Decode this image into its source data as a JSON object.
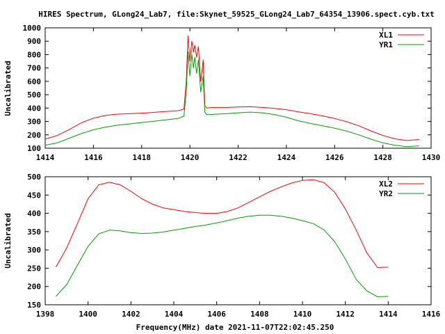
{
  "title": "HIRES Spectrum, GLong24_Lab7, file:Skynet_59525_GLong24_Lab7_64354_13906.spect.cyb.txt",
  "xlabel_bottom": "Frequency(MHz) date 2021-11-07T22:02:45.250",
  "colors": {
    "red": "#ff0000",
    "green": "#00a000",
    "axis": "#000000"
  },
  "chart_data": [
    {
      "type": "line",
      "ylabel": "Uncalibrated",
      "xlim": [
        1414,
        1430
      ],
      "ylim": [
        100,
        1000
      ],
      "xticks": [
        1414,
        1416,
        1418,
        1420,
        1422,
        1424,
        1426,
        1428,
        1430
      ],
      "yticks": [
        100,
        200,
        300,
        400,
        500,
        600,
        700,
        800,
        900,
        1000
      ],
      "legend": "top-right",
      "grid": false,
      "series": [
        {
          "name": "XL1",
          "color": "#ff0000",
          "x": [
            1414.0,
            1414.5,
            1415.0,
            1415.5,
            1416.0,
            1416.5,
            1417.0,
            1417.5,
            1418.0,
            1418.5,
            1419.0,
            1419.5,
            1419.75,
            1419.85,
            1419.92,
            1420.0,
            1420.08,
            1420.15,
            1420.2,
            1420.28,
            1420.35,
            1420.45,
            1420.55,
            1420.62,
            1420.7,
            1420.85,
            1421.0,
            1421.5,
            1422.0,
            1422.5,
            1423.0,
            1423.5,
            1424.0,
            1424.5,
            1425.0,
            1425.5,
            1426.0,
            1426.5,
            1427.0,
            1427.5,
            1428.0,
            1428.5,
            1429.0,
            1429.5
          ],
          "values": [
            168,
            195,
            240,
            290,
            325,
            345,
            355,
            358,
            362,
            368,
            375,
            380,
            392,
            600,
            940,
            750,
            900,
            820,
            870,
            780,
            860,
            600,
            760,
            420,
            400,
            403,
            405,
            405,
            408,
            410,
            405,
            398,
            388,
            372,
            358,
            342,
            322,
            298,
            268,
            230,
            195,
            170,
            158,
            165
          ]
        },
        {
          "name": "YR1",
          "color": "#00a000",
          "x": [
            1414.0,
            1414.5,
            1415.0,
            1415.5,
            1416.0,
            1416.5,
            1417.0,
            1417.5,
            1418.0,
            1418.5,
            1419.0,
            1419.5,
            1419.75,
            1419.85,
            1419.92,
            1420.0,
            1420.08,
            1420.15,
            1420.2,
            1420.28,
            1420.35,
            1420.45,
            1420.55,
            1420.62,
            1420.7,
            1420.85,
            1421.0,
            1421.5,
            1422.0,
            1422.5,
            1423.0,
            1423.5,
            1424.0,
            1424.5,
            1425.0,
            1425.5,
            1426.0,
            1426.5,
            1427.0,
            1427.5,
            1428.0,
            1428.5,
            1429.0,
            1429.5
          ],
          "values": [
            122,
            140,
            175,
            210,
            238,
            258,
            272,
            282,
            292,
            302,
            312,
            322,
            340,
            520,
            820,
            640,
            800,
            700,
            780,
            660,
            760,
            520,
            640,
            370,
            350,
            352,
            354,
            358,
            365,
            370,
            365,
            352,
            332,
            305,
            285,
            268,
            250,
            228,
            200,
            168,
            140,
            122,
            112,
            118
          ]
        }
      ]
    },
    {
      "type": "line",
      "ylabel": "Uncalibrated",
      "xlim": [
        1398,
        1416
      ],
      "ylim": [
        150,
        500
      ],
      "xticks": [
        1398,
        1400,
        1402,
        1404,
        1406,
        1408,
        1410,
        1412,
        1414,
        1416
      ],
      "yticks": [
        150,
        200,
        250,
        300,
        350,
        400,
        450,
        500
      ],
      "legend": "top-right",
      "grid": false,
      "series": [
        {
          "name": "XL2",
          "color": "#ff0000",
          "x": [
            1398.5,
            1399.0,
            1399.5,
            1400.0,
            1400.5,
            1401.0,
            1401.5,
            1402.0,
            1402.5,
            1403.0,
            1403.5,
            1404.0,
            1404.5,
            1405.0,
            1405.5,
            1406.0,
            1406.5,
            1407.0,
            1407.5,
            1408.0,
            1408.5,
            1409.0,
            1409.5,
            1410.0,
            1410.5,
            1411.0,
            1411.5,
            1412.0,
            1412.5,
            1413.0,
            1413.5,
            1414.0
          ],
          "values": [
            253,
            305,
            372,
            440,
            478,
            485,
            478,
            460,
            440,
            425,
            415,
            410,
            405,
            402,
            400,
            400,
            405,
            415,
            430,
            445,
            460,
            472,
            483,
            490,
            492,
            484,
            458,
            412,
            355,
            292,
            252,
            253
          ]
        },
        {
          "name": "YR2",
          "color": "#00a000",
          "x": [
            1398.5,
            1399.0,
            1399.5,
            1400.0,
            1400.5,
            1401.0,
            1401.5,
            1402.0,
            1402.5,
            1403.0,
            1403.5,
            1404.0,
            1404.5,
            1405.0,
            1405.5,
            1406.0,
            1406.5,
            1407.0,
            1407.5,
            1408.0,
            1408.5,
            1409.0,
            1409.5,
            1410.0,
            1410.5,
            1411.0,
            1411.5,
            1412.0,
            1412.5,
            1413.0,
            1413.5,
            1414.0
          ],
          "values": [
            173,
            205,
            258,
            310,
            344,
            354,
            352,
            347,
            345,
            346,
            349,
            354,
            359,
            364,
            368,
            374,
            380,
            387,
            392,
            395,
            395,
            392,
            387,
            380,
            372,
            355,
            323,
            275,
            220,
            188,
            172,
            173
          ]
        }
      ]
    }
  ]
}
